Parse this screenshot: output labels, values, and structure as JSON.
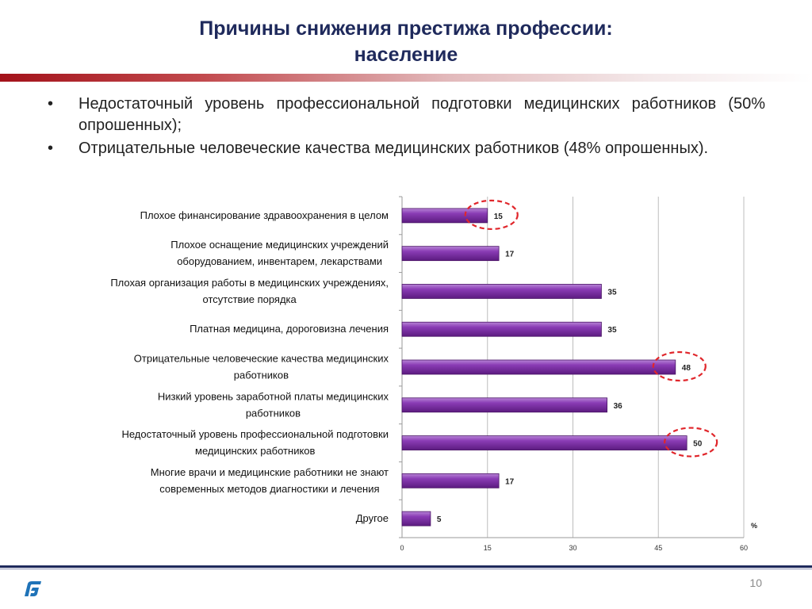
{
  "slide": {
    "title_line1": "Причины снижения престижа профессии:",
    "title_line2": "население",
    "bullets": [
      "Недостаточный уровень профессиональной подготовки медицинских работников (50% опрошенных);",
      "Отрицательные человеческие качества медицинских работников (48% опрошенных)."
    ],
    "bullet_symbol": "•",
    "page_number": "10"
  },
  "chart_data": {
    "type": "bar",
    "orientation": "horizontal",
    "categories": [
      [
        "Плохое финансирование здравоохранения в целом"
      ],
      [
        "Плохое оснащение медицинских учреждений",
        "оборудованием, инвентарем, лекарствами"
      ],
      [
        "Плохая организация работы в медицинских учреждениях,",
        "отсутствие порядка"
      ],
      [
        "Платная медицина, дороговизна лечения"
      ],
      [
        "Отрицательные человеческие качества медицинских",
        "работников"
      ],
      [
        "Низкий уровень заработной платы медицинских",
        "работников"
      ],
      [
        "Недостаточный уровень профессиональной подготовки",
        "медицинских работников"
      ],
      [
        "Многие врачи и медицинские работники не знают",
        "современных методов диагностики и лечения"
      ],
      [
        "Другое"
      ]
    ],
    "values": [
      15,
      17,
      35,
      35,
      48,
      36,
      50,
      17,
      5
    ],
    "highlighted": [
      0,
      4,
      6
    ],
    "xlim": [
      0,
      60
    ],
    "xticks": [
      0,
      15,
      30,
      45,
      60
    ],
    "unit_label": "%",
    "grid": true,
    "bar_color": "#7a2a9c",
    "highlight_color": "#e0262b"
  }
}
